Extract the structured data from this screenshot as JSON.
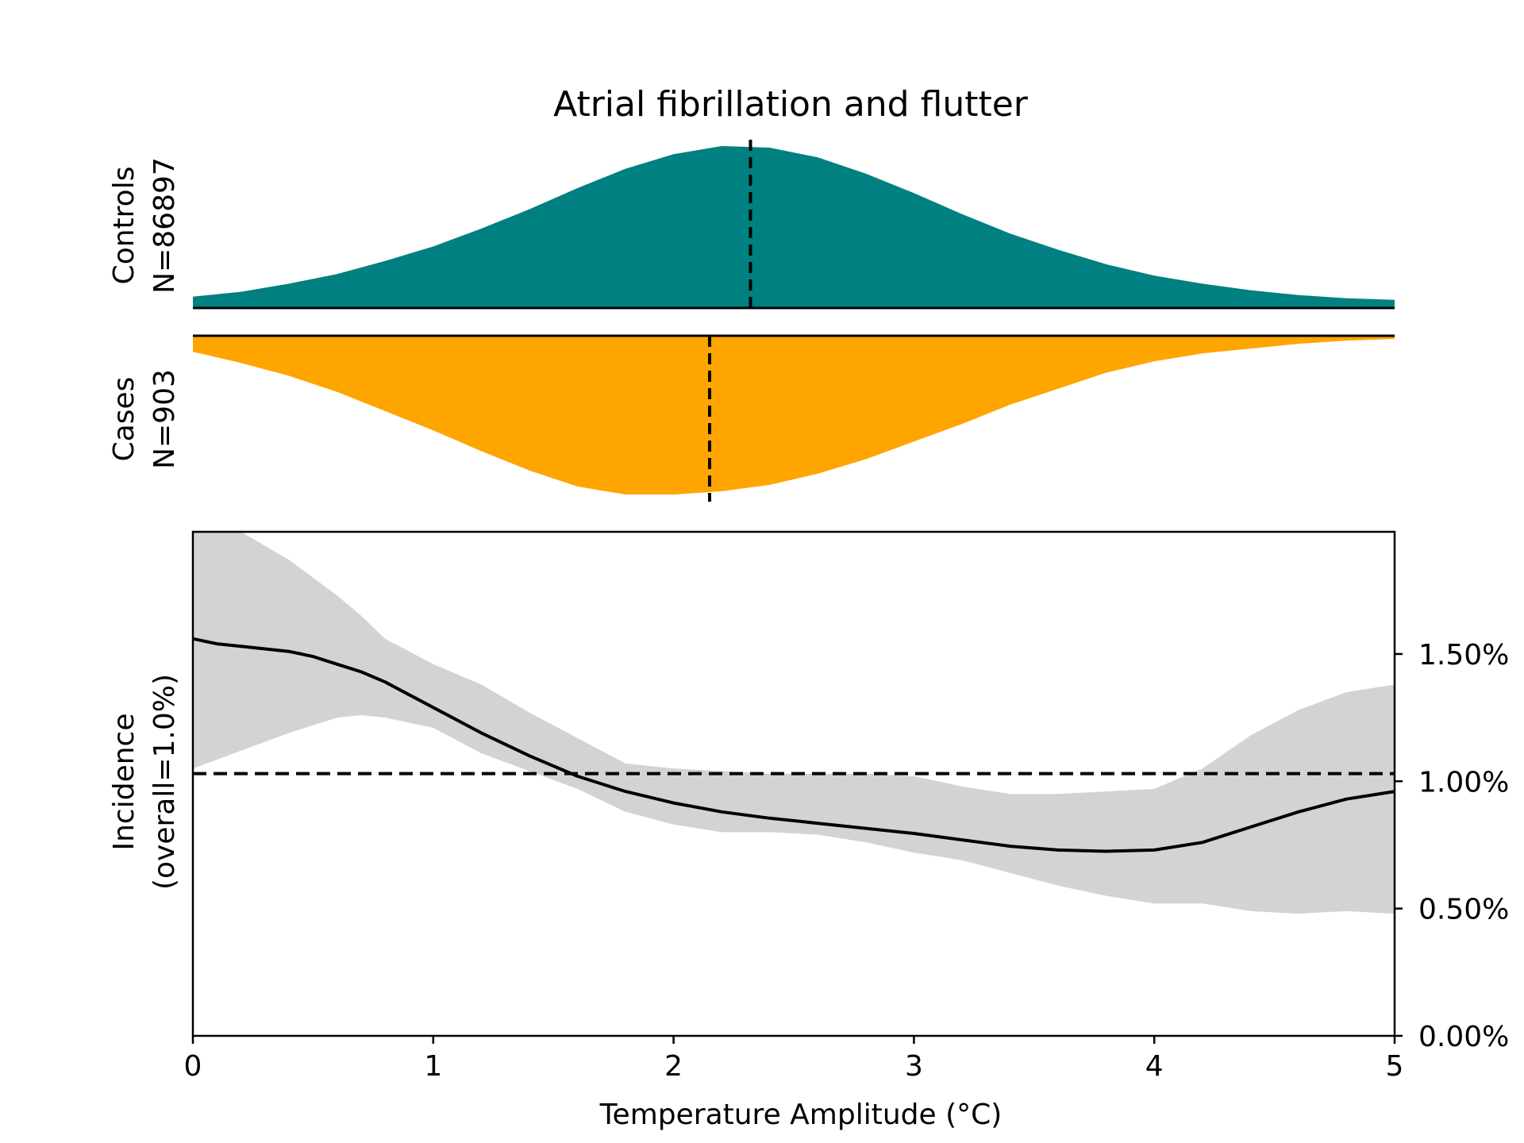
{
  "chart_data": [
    {
      "type": "area",
      "panel": "controls-density",
      "title": "Atrial fibrillation and flutter",
      "ylabel_lines": [
        "Controls",
        "N=86897"
      ],
      "color": "#008080",
      "x": [
        0,
        0.2,
        0.4,
        0.6,
        0.8,
        1.0,
        1.2,
        1.4,
        1.6,
        1.8,
        2.0,
        2.2,
        2.4,
        2.6,
        2.8,
        3.0,
        3.2,
        3.4,
        3.6,
        3.8,
        4.0,
        4.2,
        4.4,
        4.6,
        4.8,
        5.0
      ],
      "density": [
        0.07,
        0.1,
        0.15,
        0.21,
        0.29,
        0.38,
        0.49,
        0.61,
        0.74,
        0.86,
        0.95,
        1.0,
        0.99,
        0.93,
        0.83,
        0.71,
        0.58,
        0.46,
        0.36,
        0.27,
        0.2,
        0.15,
        0.11,
        0.08,
        0.06,
        0.05
      ],
      "median": 2.32,
      "xlim": [
        0,
        5
      ]
    },
    {
      "type": "area",
      "panel": "cases-density",
      "ylabel_lines": [
        "Cases",
        "N=903"
      ],
      "color": "#FFA500",
      "x": [
        0,
        0.2,
        0.4,
        0.6,
        0.8,
        1.0,
        1.2,
        1.4,
        1.6,
        1.8,
        2.0,
        2.2,
        2.4,
        2.6,
        2.8,
        3.0,
        3.2,
        3.4,
        3.6,
        3.8,
        4.0,
        4.2,
        4.4,
        4.6,
        4.8,
        5.0
      ],
      "density": [
        0.1,
        0.17,
        0.25,
        0.35,
        0.47,
        0.59,
        0.72,
        0.84,
        0.94,
        0.99,
        0.99,
        0.97,
        0.93,
        0.86,
        0.77,
        0.66,
        0.55,
        0.43,
        0.33,
        0.23,
        0.16,
        0.11,
        0.08,
        0.05,
        0.03,
        0.02
      ],
      "median": 2.15,
      "xlim": [
        0,
        5
      ]
    },
    {
      "type": "line",
      "panel": "incidence",
      "xlabel": "Temperature Amplitude (°C)",
      "ylabel_lines": [
        "Incidence",
        "(overall=1.0%)"
      ],
      "x_ticks": [
        "0",
        "1",
        "2",
        "3",
        "4",
        "5"
      ],
      "y_ticks": [
        "0.00%",
        "0.50%",
        "1.00%",
        "1.50%"
      ],
      "xlim": [
        0,
        5
      ],
      "ylim": [
        0,
        1.98
      ],
      "reference_line": 1.03,
      "series": [
        {
          "x": [
            0,
            0.1,
            0.2,
            0.3,
            0.4,
            0.5,
            0.6,
            0.7,
            0.8,
            0.9,
            1.0,
            1.2,
            1.4,
            1.6,
            1.8,
            2.0,
            2.2,
            2.4,
            2.6,
            2.8,
            3.0,
            3.2,
            3.4,
            3.6,
            3.8,
            4.0,
            4.2,
            4.4,
            4.6,
            4.8,
            5.0
          ],
          "y": [
            1.56,
            1.54,
            1.53,
            1.52,
            1.51,
            1.49,
            1.46,
            1.43,
            1.39,
            1.34,
            1.29,
            1.19,
            1.1,
            1.02,
            0.96,
            0.915,
            0.88,
            0.855,
            0.835,
            0.815,
            0.795,
            0.77,
            0.745,
            0.73,
            0.725,
            0.73,
            0.76,
            0.82,
            0.88,
            0.93,
            0.96
          ]
        }
      ],
      "confidence_band": {
        "x": [
          0,
          0.2,
          0.4,
          0.6,
          0.7,
          0.8,
          1.0,
          1.2,
          1.4,
          1.6,
          1.8,
          2.0,
          2.2,
          2.4,
          2.6,
          2.8,
          3.0,
          3.2,
          3.4,
          3.6,
          3.8,
          4.0,
          4.2,
          4.4,
          4.6,
          4.8,
          5.0
        ],
        "lower": [
          1.05,
          1.12,
          1.19,
          1.25,
          1.26,
          1.25,
          1.21,
          1.11,
          1.04,
          0.97,
          0.88,
          0.83,
          0.8,
          0.8,
          0.79,
          0.76,
          0.72,
          0.69,
          0.64,
          0.59,
          0.55,
          0.52,
          0.52,
          0.49,
          0.48,
          0.49,
          0.48
        ],
        "upper": [
          2.15,
          2.0,
          1.87,
          1.73,
          1.65,
          1.56,
          1.46,
          1.38,
          1.27,
          1.17,
          1.07,
          1.05,
          1.04,
          1.03,
          1.03,
          1.03,
          1.02,
          0.98,
          0.95,
          0.95,
          0.96,
          0.97,
          1.05,
          1.18,
          1.28,
          1.35,
          1.38
        ]
      },
      "band_color": "#D3D3D3",
      "line_color": "#000000"
    }
  ]
}
